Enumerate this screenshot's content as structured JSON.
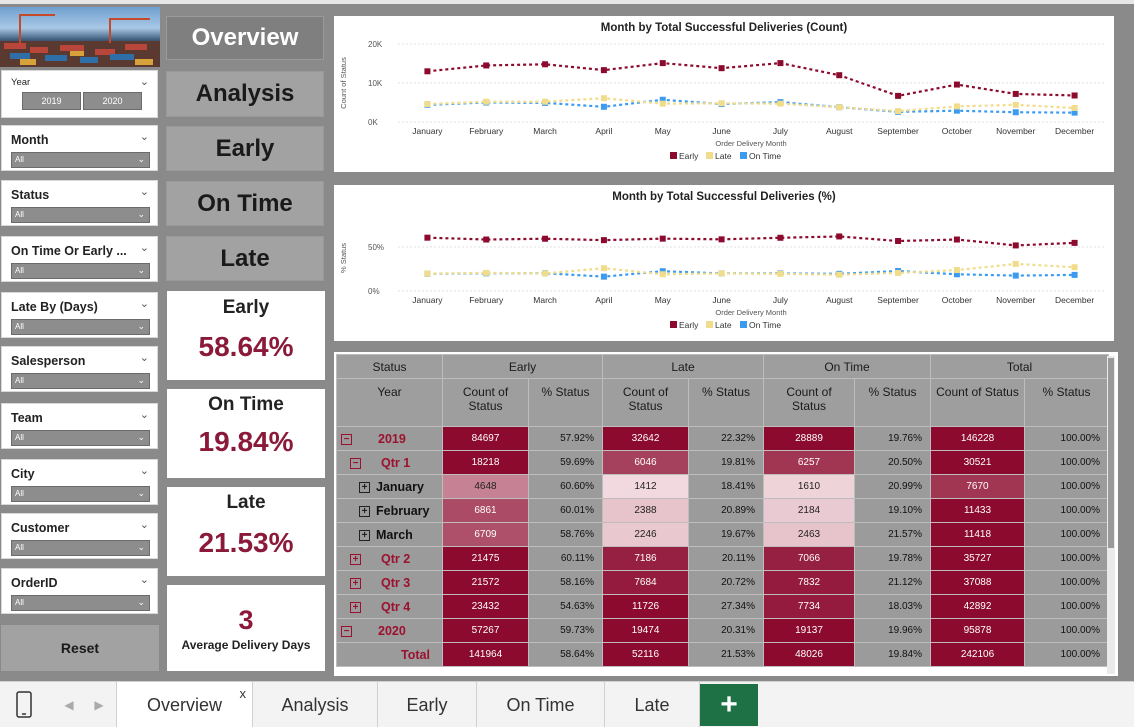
{
  "slicers": [
    {
      "title": "Month",
      "value": "All"
    },
    {
      "title": "Status",
      "value": "All"
    },
    {
      "title": "On Time Or Early ...",
      "value": "All"
    },
    {
      "title": "Late By (Days)",
      "value": "All"
    },
    {
      "title": "Salesperson",
      "value": "All"
    },
    {
      "title": "Team",
      "value": "All"
    },
    {
      "title": "City",
      "value": "All"
    },
    {
      "title": "Customer",
      "value": "All"
    },
    {
      "title": "OrderID",
      "value": "All"
    }
  ],
  "year_slicer": {
    "title": "Year",
    "options": [
      "2019",
      "2020"
    ]
  },
  "nav": {
    "overview": "Overview",
    "analysis": "Analysis",
    "early": "Early",
    "ontime": "On Time",
    "late": "Late"
  },
  "kpis": {
    "early_label": "Early",
    "early_value": "58.64%",
    "ontime_label": "On Time",
    "ontime_value": "19.84%",
    "late_label": "Late",
    "late_value": "21.53%",
    "avg_value": "3",
    "avg_label": "Average Delivery Days"
  },
  "reset_label": "Reset",
  "colors": {
    "early": "#8b0a2e",
    "late": "#f0dc8a",
    "ontime": "#3b9bf0"
  },
  "chart_data": [
    {
      "type": "line",
      "title": "Month by Total Successful Deliveries (Count)",
      "xlabel": "Order Delivery Month",
      "ylabel": "Count of Status",
      "yticks": [
        "0K",
        "10K",
        "20K"
      ],
      "ylim": [
        0,
        20000
      ],
      "categories": [
        "January",
        "February",
        "March",
        "April",
        "May",
        "June",
        "July",
        "August",
        "September",
        "October",
        "November",
        "December"
      ],
      "series": [
        {
          "name": "Early",
          "values": [
            13000,
            14500,
            14800,
            13300,
            15100,
            13800,
            15100,
            12000,
            6700,
            9600,
            7200,
            6800
          ]
        },
        {
          "name": "Late",
          "values": [
            4600,
            5200,
            5200,
            6100,
            4700,
            4800,
            4700,
            3800,
            2800,
            4000,
            4400,
            3600
          ]
        },
        {
          "name": "On Time",
          "values": [
            4400,
            5000,
            4900,
            3900,
            5700,
            4600,
            5100,
            3800,
            2600,
            2900,
            2500,
            2400
          ]
        }
      ],
      "legend": [
        "Early",
        "Late",
        "On Time"
      ]
    },
    {
      "type": "line",
      "title": "Month by Total Successful Deliveries (%)",
      "xlabel": "Order Delivery Month",
      "ylabel": "% Status",
      "yticks": [
        "0%",
        "50%"
      ],
      "ylim": [
        0,
        75
      ],
      "categories": [
        "January",
        "February",
        "March",
        "April",
        "May",
        "June",
        "July",
        "August",
        "September",
        "October",
        "November",
        "December"
      ],
      "series": [
        {
          "name": "Early",
          "values": [
            60.6,
            58.5,
            59.4,
            57.8,
            59.5,
            58.7,
            60.5,
            62.0,
            56.8,
            58.5,
            51.8,
            54.7
          ]
        },
        {
          "name": "Late",
          "values": [
            19.8,
            20.6,
            20.0,
            25.9,
            19.0,
            20.0,
            19.5,
            18.5,
            20.5,
            23.8,
            30.8,
            27.0
          ]
        },
        {
          "name": "On Time",
          "values": [
            19.6,
            20.1,
            20.2,
            16.3,
            22.5,
            20.0,
            20.0,
            19.5,
            22.7,
            19.0,
            17.5,
            18.3
          ]
        }
      ],
      "legend": [
        "Early",
        "Late",
        "On Time"
      ]
    }
  ],
  "matrix": {
    "top_headers": [
      "Status",
      "Early",
      "Late",
      "On Time",
      "Total"
    ],
    "row_header": "Year",
    "sub_headers": [
      "Count of Status",
      "% Status",
      "Count of Status",
      "% Status",
      "Count of Status",
      "% Status",
      "Count of Status",
      "% Status"
    ],
    "rows": [
      {
        "label": "2019",
        "level": 0,
        "toggle": "−",
        "red": true,
        "cells": [
          "84697",
          "57.92%",
          "32642",
          "22.32%",
          "28889",
          "19.76%",
          "146228",
          "100.00%"
        ],
        "shade": [
          1.0,
          1.0,
          1.0,
          1.0
        ]
      },
      {
        "label": "Qtr 1",
        "level": 1,
        "toggle": "−",
        "red": true,
        "cells": [
          "18218",
          "59.69%",
          "6046",
          "19.81%",
          "6257",
          "20.50%",
          "30521",
          "100.00%"
        ],
        "shade": [
          1.0,
          0.75,
          0.8,
          1.0
        ]
      },
      {
        "label": "January",
        "level": 2,
        "toggle": "+",
        "red": false,
        "cells": [
          "4648",
          "60.60%",
          "1412",
          "18.41%",
          "1610",
          "20.99%",
          "7670",
          "100.00%"
        ],
        "shade": [
          0.45,
          0.05,
          0.08,
          0.8
        ]
      },
      {
        "label": "February",
        "level": 2,
        "toggle": "+",
        "red": false,
        "cells": [
          "6861",
          "60.01%",
          "2388",
          "20.89%",
          "2184",
          "19.10%",
          "11433",
          "100.00%"
        ],
        "shade": [
          0.7,
          0.15,
          0.12,
          1.0
        ]
      },
      {
        "label": "March",
        "level": 2,
        "toggle": "+",
        "red": false,
        "cells": [
          "6709",
          "58.76%",
          "2246",
          "19.67%",
          "2463",
          "21.57%",
          "11418",
          "100.00%"
        ],
        "shade": [
          0.68,
          0.13,
          0.15,
          1.0
        ]
      },
      {
        "label": "Qtr 2",
        "level": 1,
        "toggle": "+",
        "red": true,
        "cells": [
          "21475",
          "60.11%",
          "7186",
          "20.11%",
          "7066",
          "19.78%",
          "35727",
          "100.00%"
        ],
        "shade": [
          1.0,
          0.9,
          0.9,
          1.0
        ]
      },
      {
        "label": "Qtr 3",
        "level": 1,
        "toggle": "+",
        "red": true,
        "cells": [
          "21572",
          "58.16%",
          "7684",
          "20.72%",
          "7832",
          "21.12%",
          "37088",
          "100.00%"
        ],
        "shade": [
          1.0,
          0.92,
          0.92,
          1.0
        ]
      },
      {
        "label": "Qtr 4",
        "level": 1,
        "toggle": "+",
        "red": true,
        "cells": [
          "23432",
          "54.63%",
          "11726",
          "27.34%",
          "7734",
          "18.03%",
          "42892",
          "100.00%"
        ],
        "shade": [
          1.0,
          1.0,
          0.92,
          1.0
        ]
      },
      {
        "label": "2020",
        "level": 0,
        "toggle": "−",
        "red": true,
        "cells": [
          "57267",
          "59.73%",
          "19474",
          "20.31%",
          "19137",
          "19.96%",
          "95878",
          "100.00%"
        ],
        "shade": [
          1.0,
          1.0,
          1.0,
          1.0
        ]
      },
      {
        "label": "Total",
        "level": 0,
        "toggle": "",
        "red": true,
        "cells": [
          "141964",
          "58.64%",
          "52116",
          "21.53%",
          "48026",
          "19.84%",
          "242106",
          "100.00%"
        ],
        "shade": [
          1.0,
          1.0,
          1.0,
          1.0
        ]
      }
    ]
  },
  "tabs": [
    "Overview",
    "Analysis",
    "Early",
    "On Time",
    "Late"
  ],
  "tab_close": "x",
  "add_tab": "+"
}
